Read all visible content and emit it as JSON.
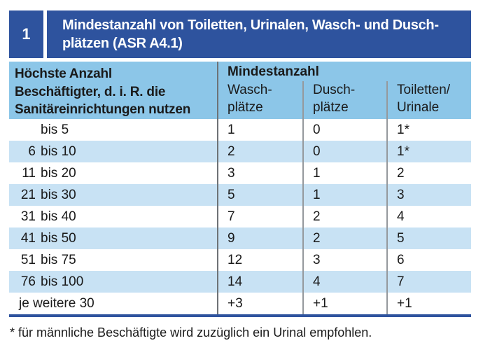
{
  "header": {
    "index": "1",
    "title_line1": "Mindestanzahl von Toiletten, Urinalen, Wasch- und Dusch-",
    "title_line2": "plätzen (ASR A4.1)"
  },
  "table": {
    "col1_header_lines": [
      "Höchste Anzahl",
      "Beschäftigter, d. i. R. die",
      "Sanitäreinrichtungen nutzen"
    ],
    "group_header": "Mindestanzahl",
    "sub_headers": [
      [
        "Wasch-",
        "plätze"
      ],
      [
        "Dusch-",
        "plätze"
      ],
      [
        "Toiletten/",
        "Urinale"
      ]
    ],
    "rows": [
      {
        "num": "",
        "range": "bis 5",
        "wasch": "1",
        "dusch": "0",
        "toiletten": "1*"
      },
      {
        "num": "6",
        "range": "bis 10",
        "wasch": "2",
        "dusch": "0",
        "toiletten": "1*"
      },
      {
        "num": "11",
        "range": "bis 20",
        "wasch": "3",
        "dusch": "1",
        "toiletten": "2"
      },
      {
        "num": "21",
        "range": "bis 30",
        "wasch": "5",
        "dusch": "1",
        "toiletten": "3"
      },
      {
        "num": "31",
        "range": "bis 40",
        "wasch": "7",
        "dusch": "2",
        "toiletten": "4"
      },
      {
        "num": "41",
        "range": "bis 50",
        "wasch": "9",
        "dusch": "2",
        "toiletten": "5"
      },
      {
        "num": "51",
        "range": "bis 75",
        "wasch": "12",
        "dusch": "3",
        "toiletten": "6"
      },
      {
        "num": "76",
        "range": "bis 100",
        "wasch": "14",
        "dusch": "4",
        "toiletten": "7"
      },
      {
        "num": "",
        "range": "je weitere 30",
        "wasch": "+3",
        "dusch": "+1",
        "toiletten": "+1"
      }
    ]
  },
  "footnote": "* für männliche Beschäftigte wird zuzüglich ein Urinal empfohlen.",
  "colors": {
    "header_blue": "#2e539e",
    "band_blue": "#8cc6e8",
    "stripe_blue": "#c8e2f4",
    "divider_dark": "#6e7276",
    "divider_light": "#95999d",
    "text_dark": "#1a1a1a",
    "title_text": "#ffffff"
  }
}
